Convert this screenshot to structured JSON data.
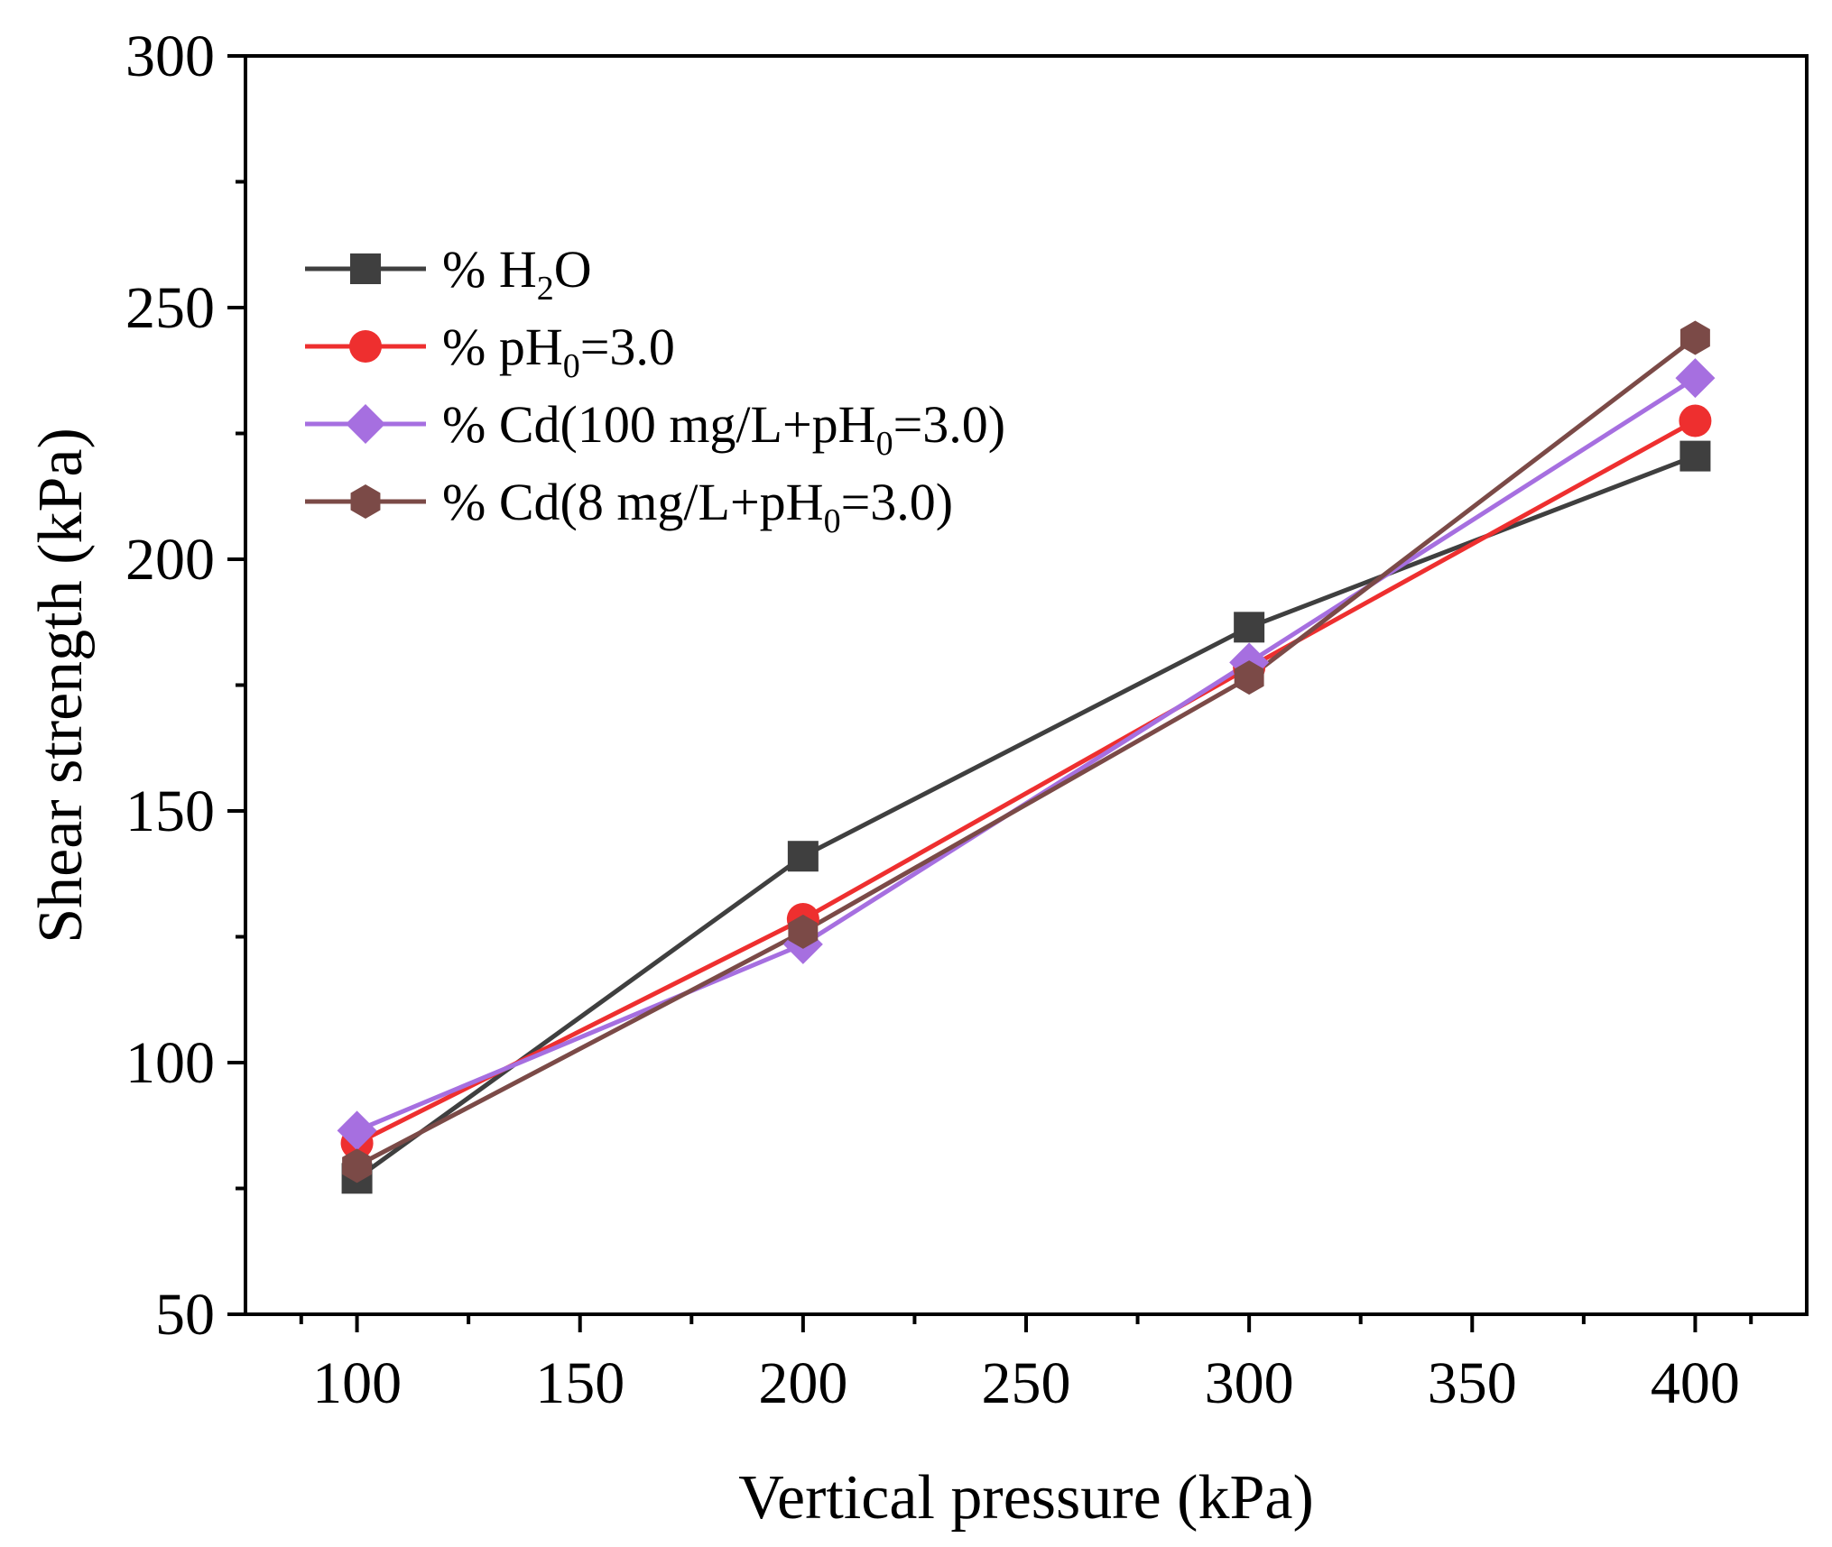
{
  "chart_data": {
    "type": "line",
    "title": "",
    "xlabel": "Vertical pressure (kPa)",
    "ylabel": "Shear strength (kPa)",
    "xlim": [
      75,
      425
    ],
    "ylim": [
      50,
      300
    ],
    "x_ticks": [
      100,
      150,
      200,
      250,
      300,
      350,
      400
    ],
    "y_ticks": [
      50,
      100,
      150,
      200,
      250,
      300
    ],
    "x": [
      100,
      200,
      300,
      400
    ],
    "legend_position": "upper-left",
    "series": [
      {
        "name": "% H2O",
        "label_base": "% H",
        "label_sub": "2",
        "label_rest": "O",
        "color": "#3f3f3f",
        "marker": "square",
        "values": [
          77,
          141,
          186.5,
          220.5
        ]
      },
      {
        "name": "% pH0=3.0",
        "label_base": "% pH",
        "label_sub": "0",
        "label_rest": "=3.0",
        "color": "#ee2f2f",
        "marker": "circle",
        "values": [
          84,
          128.5,
          178.5,
          227.5
        ]
      },
      {
        "name": "% Cd(100 mg/L+pH0=3.0)",
        "label_base": "% Cd(100 mg/L+pH",
        "label_sub": "0",
        "label_rest": "=3.0)",
        "color": "#a66fe0",
        "marker": "diamond",
        "values": [
          86.5,
          123.5,
          179.5,
          236
        ]
      },
      {
        "name": "% Cd(8 mg/L+pH0=3.0)",
        "label_base": "% Cd(8 mg/L+pH",
        "label_sub": "0",
        "label_rest": "=3.0)",
        "color": "#7b4a47",
        "marker": "hexagon",
        "values": [
          79.5,
          126,
          176.5,
          244
        ]
      }
    ]
  }
}
